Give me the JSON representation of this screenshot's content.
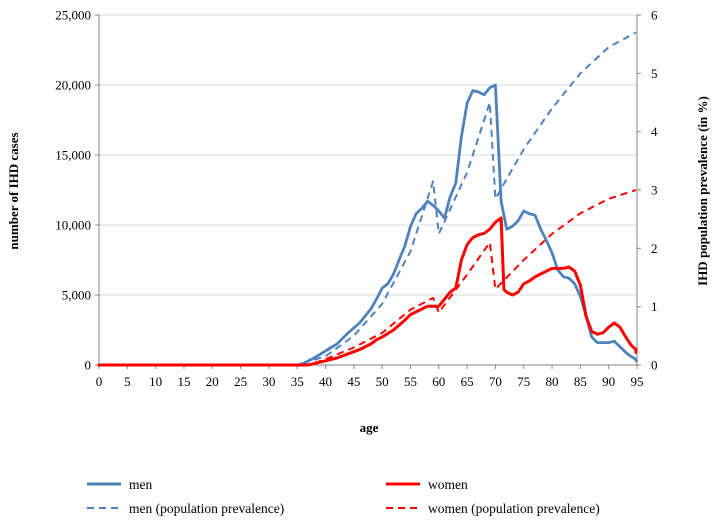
{
  "chart_data": {
    "type": "line",
    "title": "",
    "xlabel": "age",
    "ylabel_left": "number of IHD cases",
    "ylabel_right": "IHD population prevalence (in %)",
    "xlim": [
      0,
      95
    ],
    "ylim_left": [
      0,
      25000
    ],
    "ylim_right": [
      0,
      6
    ],
    "x_ticks": [
      0,
      5,
      10,
      15,
      20,
      25,
      30,
      35,
      40,
      45,
      50,
      55,
      60,
      65,
      70,
      75,
      80,
      85,
      90,
      95
    ],
    "x_tick_labels": [
      "0",
      "5",
      "10",
      "15",
      "20",
      "25",
      "30",
      "35",
      "40",
      "45",
      "50",
      "55",
      "60",
      "65",
      "70",
      "75",
      "80",
      "85",
      "90",
      "95"
    ],
    "y_left_ticks": [
      0,
      5000,
      10000,
      15000,
      20000,
      25000
    ],
    "y_left_tick_labels": [
      "0",
      "5,000",
      "10,000",
      "15,000",
      "20,000",
      "25,000"
    ],
    "y_right_ticks": [
      0,
      1,
      2,
      3,
      4,
      5,
      6
    ],
    "y_right_tick_labels": [
      "0",
      "1",
      "2",
      "3",
      "4",
      "5",
      "6"
    ],
    "grid": "horizontal",
    "legend_position": "bottom",
    "series": [
      {
        "name": "men",
        "axis": "left",
        "style": "solid",
        "color": "#4f81bd",
        "points": [
          [
            0,
            0
          ],
          [
            35,
            0
          ],
          [
            36,
            100
          ],
          [
            37,
            300
          ],
          [
            38,
            500
          ],
          [
            40,
            1000
          ],
          [
            42,
            1500
          ],
          [
            44,
            2300
          ],
          [
            46,
            3000
          ],
          [
            48,
            4000
          ],
          [
            49,
            4700
          ],
          [
            50,
            5500
          ],
          [
            51,
            5800
          ],
          [
            52,
            6500
          ],
          [
            53,
            7500
          ],
          [
            54,
            8500
          ],
          [
            55,
            9900
          ],
          [
            56,
            10800
          ],
          [
            57,
            11200
          ],
          [
            58,
            11700
          ],
          [
            59,
            11400
          ],
          [
            60,
            11000
          ],
          [
            61,
            10500
          ],
          [
            62,
            12000
          ],
          [
            63,
            13000
          ],
          [
            64,
            16300
          ],
          [
            65,
            18700
          ],
          [
            66,
            19600
          ],
          [
            67,
            19500
          ],
          [
            68,
            19300
          ],
          [
            69,
            19800
          ],
          [
            70,
            20000
          ],
          [
            71,
            11700
          ],
          [
            72,
            9700
          ],
          [
            73,
            9900
          ],
          [
            74,
            10300
          ],
          [
            75,
            11000
          ],
          [
            76,
            10800
          ],
          [
            77,
            10700
          ],
          [
            78,
            9700
          ],
          [
            79,
            8900
          ],
          [
            80,
            8000
          ],
          [
            81,
            6800
          ],
          [
            82,
            6300
          ],
          [
            83,
            6200
          ],
          [
            84,
            5800
          ],
          [
            85,
            4900
          ],
          [
            86,
            3500
          ],
          [
            87,
            2000
          ],
          [
            88,
            1600
          ],
          [
            89,
            1600
          ],
          [
            90,
            1600
          ],
          [
            91,
            1700
          ],
          [
            92,
            1300
          ],
          [
            93,
            900
          ],
          [
            94,
            600
          ],
          [
            95,
            400
          ],
          [
            96,
            300
          ]
        ]
      },
      {
        "name": "women",
        "axis": "left",
        "style": "solid",
        "color": "#ff0000",
        "points": [
          [
            0,
            0
          ],
          [
            37,
            0
          ],
          [
            38,
            100
          ],
          [
            40,
            300
          ],
          [
            42,
            500
          ],
          [
            44,
            800
          ],
          [
            46,
            1100
          ],
          [
            48,
            1500
          ],
          [
            49,
            1800
          ],
          [
            50,
            2000
          ],
          [
            52,
            2500
          ],
          [
            54,
            3200
          ],
          [
            55,
            3600
          ],
          [
            56,
            3800
          ],
          [
            57,
            4000
          ],
          [
            58,
            4200
          ],
          [
            59,
            4200
          ],
          [
            60,
            4200
          ],
          [
            61,
            4700
          ],
          [
            62,
            5200
          ],
          [
            63,
            5500
          ],
          [
            64,
            7500
          ],
          [
            65,
            8600
          ],
          [
            66,
            9100
          ],
          [
            67,
            9300
          ],
          [
            68,
            9400
          ],
          [
            69,
            9700
          ],
          [
            70,
            10200
          ],
          [
            71,
            10500
          ],
          [
            71.5,
            5400
          ],
          [
            72,
            5200
          ],
          [
            73,
            5000
          ],
          [
            74,
            5200
          ],
          [
            75,
            5800
          ],
          [
            76,
            6000
          ],
          [
            77,
            6300
          ],
          [
            78,
            6500
          ],
          [
            79,
            6700
          ],
          [
            80,
            6900
          ],
          [
            81,
            6900
          ],
          [
            82,
            6900
          ],
          [
            83,
            7000
          ],
          [
            84,
            6700
          ],
          [
            85,
            5700
          ],
          [
            86,
            3500
          ],
          [
            87,
            2400
          ],
          [
            88,
            2200
          ],
          [
            89,
            2300
          ],
          [
            90,
            2700
          ],
          [
            91,
            3000
          ],
          [
            92,
            2700
          ],
          [
            93,
            2000
          ],
          [
            94,
            1400
          ],
          [
            95,
            1100
          ],
          [
            96,
            900
          ]
        ]
      },
      {
        "name": "men (population prevalence)",
        "axis": "right",
        "style": "dashed",
        "color": "#4f81bd",
        "points": [
          [
            0,
            0
          ],
          [
            35,
            0
          ],
          [
            40,
            0.15
          ],
          [
            45,
            0.5
          ],
          [
            50,
            1.05
          ],
          [
            55,
            1.95
          ],
          [
            59,
            3.15
          ],
          [
            60,
            2.25
          ],
          [
            65,
            3.3
          ],
          [
            69,
            4.5
          ],
          [
            70,
            2.85
          ],
          [
            75,
            3.7
          ],
          [
            80,
            4.4
          ],
          [
            85,
            5.0
          ],
          [
            90,
            5.45
          ],
          [
            95,
            5.7
          ]
        ]
      },
      {
        "name": "women (population prevalence)",
        "axis": "right",
        "style": "dashed",
        "color": "#ff0000",
        "points": [
          [
            0,
            0
          ],
          [
            37,
            0
          ],
          [
            40,
            0.1
          ],
          [
            45,
            0.3
          ],
          [
            50,
            0.55
          ],
          [
            55,
            0.95
          ],
          [
            59,
            1.15
          ],
          [
            60,
            0.9
          ],
          [
            65,
            1.55
          ],
          [
            69,
            2.1
          ],
          [
            70,
            1.3
          ],
          [
            75,
            1.8
          ],
          [
            80,
            2.25
          ],
          [
            85,
            2.6
          ],
          [
            90,
            2.85
          ],
          [
            95,
            3.0
          ]
        ]
      }
    ]
  }
}
